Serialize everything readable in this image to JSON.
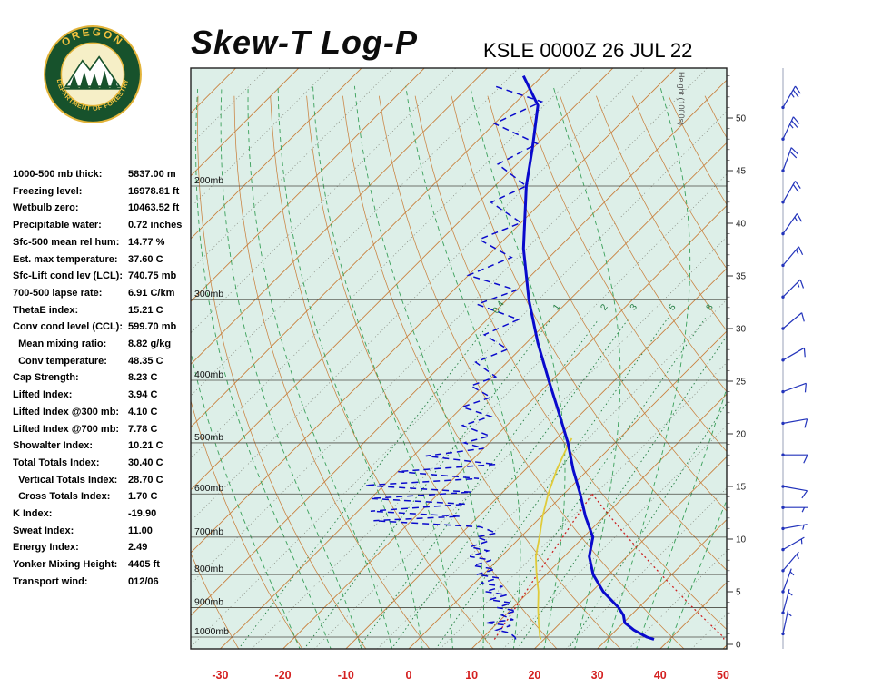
{
  "page": {
    "background": "#ffffff"
  },
  "header": {
    "title": "Skew-T Log-P",
    "station_line": "KSLE 0000Z 26 JUL 22",
    "logo": {
      "top": "OREGON",
      "bottom": "DEPARTMENT OF FORESTRY"
    }
  },
  "stats": {
    "rows": [
      {
        "label": "1000-500 mb thick:",
        "value": "5837.00 m"
      },
      {
        "label": "Freezing level:",
        "value": "16978.81 ft"
      },
      {
        "label": "Wetbulb zero:",
        "value": "10463.52 ft"
      },
      {
        "label": "Precipitable water:",
        "value": "0.72 inches"
      },
      {
        "label": "Sfc-500 mean rel hum:",
        "value": "14.77 %"
      },
      {
        "label": "Est. max temperature:",
        "value": "37.60 C"
      },
      {
        "label": "Sfc-Lift cond lev (LCL):",
        "value": "740.75 mb"
      },
      {
        "label": "700-500 lapse rate:",
        "value": "6.91 C/km"
      },
      {
        "label": "ThetaE index:",
        "value": "15.21 C"
      },
      {
        "label": "Conv cond level (CCL):",
        "value": "599.70 mb"
      },
      {
        "label": "  Mean mixing ratio:",
        "value": "8.82 g/kg"
      },
      {
        "label": "  Conv temperature:",
        "value": "48.35 C"
      },
      {
        "label": "Cap Strength:",
        "value": "8.23 C"
      },
      {
        "label": "Lifted Index:",
        "value": "3.94 C"
      },
      {
        "label": "Lifted Index @300 mb:",
        "value": "4.10 C"
      },
      {
        "label": "Lifted Index @700 mb:",
        "value": "7.78 C"
      },
      {
        "label": "Showalter Index:",
        "value": "10.21 C"
      },
      {
        "label": "Total Totals Index:",
        "value": "30.40 C"
      },
      {
        "label": "  Vertical Totals Index:",
        "value": "28.70 C"
      },
      {
        "label": "  Cross Totals Index:",
        "value": "1.70 C"
      },
      {
        "label": "K Index:",
        "value": "-19.90"
      },
      {
        "label": "Sweat Index:",
        "value": "11.00"
      },
      {
        "label": "Energy Index:",
        "value": "2.49"
      },
      {
        "label": "Yonker Mixing Height:",
        "value": "4405 ft"
      },
      {
        "label": "Transport wind:",
        "value": "012/06"
      }
    ]
  },
  "chart_data": {
    "type": "skewt-log-p",
    "station": "KSLE",
    "valid_time": "0000Z 26 JUL 22",
    "pressure_levels": [
      200,
      300,
      400,
      500,
      600,
      700,
      800,
      900,
      1000
    ],
    "pressure_labels": [
      "200mb",
      "300mb",
      "400mb",
      "500mb",
      "600mb",
      "700mb",
      "800mb",
      "900mb",
      "1000mb"
    ],
    "temp_axis": {
      "ticks": [
        -30,
        -20,
        -10,
        0,
        10,
        20,
        30,
        40,
        50
      ],
      "unit": "C"
    },
    "height_axis": {
      "label": "Height (1000s)",
      "ticks": [
        0,
        5,
        10,
        15,
        20,
        25,
        30,
        35,
        40,
        45,
        50
      ],
      "unit": "kft"
    },
    "isotherms": {
      "major_step": 10,
      "minor_step": 5
    },
    "mixing_ratio_lines": [
      0.4,
      1,
      2,
      3,
      5,
      8,
      12,
      20
    ],
    "mixing_ratio_labels": [
      "0.4",
      "1",
      "2",
      "3",
      "5",
      "8"
    ],
    "temperature_profile": [
      [
        1008,
        37.5
      ],
      [
        1000,
        36.0
      ],
      [
        975,
        32.8
      ],
      [
        950,
        30.2
      ],
      [
        925,
        28.8
      ],
      [
        900,
        26.8
      ],
      [
        850,
        21.8
      ],
      [
        800,
        17.5
      ],
      [
        750,
        14.0
      ],
      [
        700,
        11.5
      ],
      [
        650,
        7.0
      ],
      [
        600,
        2.6
      ],
      [
        550,
        -2.4
      ],
      [
        500,
        -7.5
      ],
      [
        450,
        -13.6
      ],
      [
        400,
        -20.5
      ],
      [
        350,
        -28.2
      ],
      [
        300,
        -36.5
      ],
      [
        250,
        -45.5
      ],
      [
        200,
        -55.0
      ],
      [
        175,
        -60.0
      ],
      [
        150,
        -66.0
      ],
      [
        135,
        -73.0
      ]
    ],
    "dewpoint_profile": [
      [
        1008,
        15.5
      ],
      [
        1000,
        15.0
      ],
      [
        985,
        13.5
      ],
      [
        975,
        11.0
      ],
      [
        960,
        12.5
      ],
      [
        950,
        8.0
      ],
      [
        940,
        12.0
      ],
      [
        925,
        9.5
      ],
      [
        910,
        11.0
      ],
      [
        900,
        7.5
      ],
      [
        885,
        9.0
      ],
      [
        875,
        5.0
      ],
      [
        860,
        7.0
      ],
      [
        850,
        3.0
      ],
      [
        835,
        5.0
      ],
      [
        825,
        1.0
      ],
      [
        810,
        3.0
      ],
      [
        800,
        -1.0
      ],
      [
        785,
        1.0
      ],
      [
        775,
        -3.0
      ],
      [
        760,
        -1.0
      ],
      [
        750,
        -5.0
      ],
      [
        735,
        -3.0
      ],
      [
        725,
        -6.5
      ],
      [
        710,
        -4.5
      ],
      [
        700,
        -7.0
      ],
      [
        690,
        -4.5
      ],
      [
        675,
        -8.0
      ],
      [
        660,
        -26.0
      ],
      [
        650,
        -13.0
      ],
      [
        638,
        -28.0
      ],
      [
        622,
        -14.0
      ],
      [
        610,
        -30.0
      ],
      [
        596,
        -15.0
      ],
      [
        582,
        -33.0
      ],
      [
        568,
        -16.0
      ],
      [
        554,
        -30.0
      ],
      [
        540,
        -15.5
      ],
      [
        524,
        -28.0
      ],
      [
        510,
        -20.0
      ],
      [
        500,
        -24.0
      ],
      [
        488,
        -21.0
      ],
      [
        470,
        -27.0
      ],
      [
        455,
        -24.0
      ],
      [
        440,
        -30.0
      ],
      [
        425,
        -27.0
      ],
      [
        408,
        -32.0
      ],
      [
        395,
        -29.5
      ],
      [
        375,
        -35.0
      ],
      [
        358,
        -32.0
      ],
      [
        340,
        -38.0
      ],
      [
        322,
        -35.0
      ],
      [
        305,
        -44.0
      ],
      [
        290,
        -40.0
      ],
      [
        275,
        -50.0
      ],
      [
        258,
        -46.0
      ],
      [
        242,
        -54.0
      ],
      [
        228,
        -50.0
      ],
      [
        212,
        -58.0
      ],
      [
        200,
        -55.0
      ],
      [
        185,
        -63.0
      ],
      [
        172,
        -60.0
      ],
      [
        160,
        -70.0
      ],
      [
        148,
        -66.0
      ],
      [
        140,
        -76.0
      ]
    ],
    "wetbulb_profile": [
      [
        1008,
        19.5
      ],
      [
        1000,
        19.0
      ],
      [
        950,
        16.5
      ],
      [
        900,
        14.0
      ],
      [
        850,
        11.5
      ],
      [
        800,
        8.5
      ],
      [
        750,
        5.5
      ],
      [
        700,
        3.0
      ],
      [
        650,
        0.2
      ],
      [
        600,
        -2.5
      ],
      [
        550,
        -5.0
      ],
      [
        500,
        -7.3
      ],
      [
        492,
        -7.6
      ]
    ],
    "ccl_mixing_line": [
      [
        1008,
        12.1
      ],
      [
        900,
        10.4
      ],
      [
        800,
        8.6
      ],
      [
        700,
        6.7
      ],
      [
        600,
        4.5
      ]
    ],
    "conv_temp_adiabat": [
      [
        600,
        4.5
      ],
      [
        650,
        10.9
      ],
      [
        700,
        17.0
      ],
      [
        750,
        22.8
      ],
      [
        800,
        28.3
      ],
      [
        850,
        33.6
      ],
      [
        900,
        38.6
      ],
      [
        950,
        43.5
      ],
      [
        1000,
        48.2
      ],
      [
        1008,
        48.6
      ]
    ],
    "wind_barbs": [
      [
        1,
        12,
        6
      ],
      [
        3,
        15,
        6
      ],
      [
        5,
        20,
        6
      ],
      [
        7,
        40,
        5
      ],
      [
        9,
        60,
        5
      ],
      [
        11,
        80,
        5
      ],
      [
        13,
        90,
        5
      ],
      [
        15,
        100,
        8
      ],
      [
        18,
        90,
        8
      ],
      [
        21,
        80,
        10
      ],
      [
        24,
        70,
        10
      ],
      [
        27,
        60,
        10
      ],
      [
        30,
        50,
        10
      ],
      [
        33,
        45,
        15
      ],
      [
        36,
        40,
        15
      ],
      [
        39,
        35,
        15
      ],
      [
        42,
        30,
        20
      ],
      [
        45,
        20,
        20
      ],
      [
        48,
        25,
        25
      ],
      [
        51,
        30,
        25
      ]
    ],
    "colors": {
      "plot_bg": "#ddefe8",
      "isotherm": "#c9813f",
      "minor_isotherm": "#6b6b60",
      "dry_adiabat": "#c9813f",
      "moist_adiabat": "#3aa05a",
      "mixing": "#1d7a3c",
      "pressure_line": "#4a4a42",
      "trace": "#0a0acc",
      "wetbulb": "#e0cb39",
      "construction": "#cc2222",
      "temp_axis": "#d42020",
      "barb": "#2233bb",
      "frame": "#222222"
    }
  }
}
